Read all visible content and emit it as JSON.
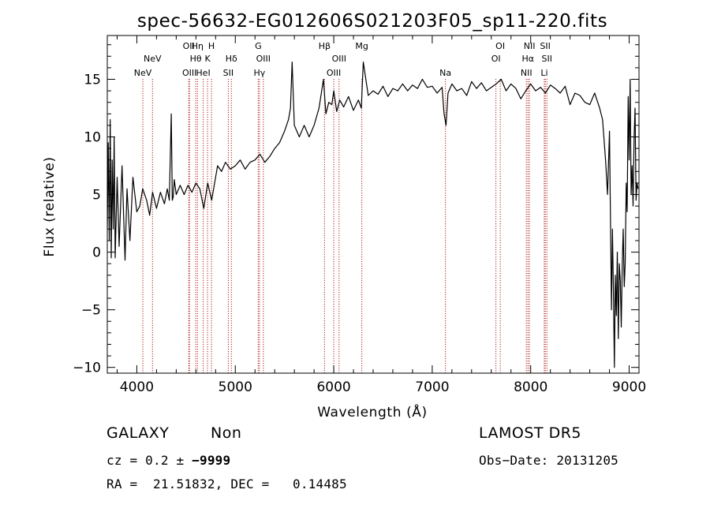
{
  "chart_data": {
    "type": "line",
    "title": "spec-56632-EG012606S021203F05_sp11-220.fits",
    "xlabel": "Wavelength (Å)",
    "ylabel": "Flux (relative)",
    "xlim": [
      3700,
      9100
    ],
    "ylim": [
      -10.5,
      18.8
    ],
    "xticks": [
      {
        "value": 4000,
        "label": "4000"
      },
      {
        "value": 5000,
        "label": "5000"
      },
      {
        "value": 6000,
        "label": "6000"
      },
      {
        "value": 7000,
        "label": "7000"
      },
      {
        "value": 8000,
        "label": "8000"
      },
      {
        "value": 9000,
        "label": "9000"
      }
    ],
    "yticks": [
      {
        "value": -10,
        "label": "−10"
      },
      {
        "value": -5,
        "label": "−5"
      },
      {
        "value": 0,
        "label": "0"
      },
      {
        "value": 5,
        "label": "5"
      },
      {
        "value": 10,
        "label": "10"
      },
      {
        "value": 15,
        "label": "15"
      }
    ],
    "spectrum": {
      "line_color": "#000000",
      "x": [
        3700,
        3710,
        3720,
        3730,
        3740,
        3750,
        3760,
        3770,
        3780,
        3800,
        3820,
        3850,
        3880,
        3900,
        3930,
        3960,
        4000,
        4030,
        4060,
        4100,
        4130,
        4160,
        4200,
        4240,
        4280,
        4310,
        4330,
        4350,
        4360,
        4370,
        4380,
        4400,
        4440,
        4480,
        4520,
        4560,
        4600,
        4640,
        4680,
        4720,
        4760,
        4780,
        4800,
        4820,
        4860,
        4900,
        4950,
        5000,
        5050,
        5100,
        5150,
        5200,
        5250,
        5300,
        5350,
        5400,
        5450,
        5500,
        5540,
        5560,
        5577,
        5600,
        5650,
        5700,
        5750,
        5800,
        5850,
        5895,
        5920,
        5950,
        5980,
        6000,
        6030,
        6060,
        6100,
        6150,
        6200,
        6250,
        6280,
        6300,
        6350,
        6400,
        6450,
        6500,
        6550,
        6600,
        6650,
        6700,
        6750,
        6800,
        6850,
        6900,
        6950,
        7000,
        7050,
        7100,
        7120,
        7140,
        7160,
        7200,
        7250,
        7300,
        7350,
        7400,
        7450,
        7500,
        7550,
        7600,
        7650,
        7700,
        7750,
        7800,
        7850,
        7900,
        7950,
        8000,
        8050,
        8100,
        8150,
        8200,
        8250,
        8300,
        8350,
        8400,
        8450,
        8500,
        8550,
        8600,
        8650,
        8700,
        8730,
        8760,
        8780,
        8800,
        8820,
        8830,
        8840,
        8850,
        8860,
        8870,
        8880,
        8890,
        8900,
        8910,
        8920,
        8930,
        8940,
        8950,
        8960,
        8970,
        8980,
        8990,
        9000,
        9010,
        9020,
        9030,
        9040,
        9050,
        9060,
        9070,
        9080,
        9090
      ],
      "y": [
        2.0,
        9.5,
        1.0,
        11.5,
        -0.5,
        8.0,
        2.0,
        10.0,
        -0.5,
        6.5,
        0.5,
        7.5,
        -0.7,
        5.5,
        1.0,
        6.5,
        3.5,
        4.0,
        5.5,
        4.5,
        3.2,
        5.2,
        3.8,
        5.2,
        4.2,
        5.5,
        4.5,
        12.0,
        4.5,
        4.8,
        6.3,
        5.0,
        5.8,
        5.0,
        5.8,
        5.2,
        6.0,
        5.5,
        3.8,
        6.0,
        4.5,
        5.5,
        6.5,
        7.5,
        7.0,
        7.8,
        7.2,
        7.5,
        8.0,
        7.2,
        7.8,
        8.0,
        8.5,
        7.8,
        8.3,
        9.0,
        9.5,
        10.5,
        11.5,
        12.5,
        16.5,
        11.0,
        10.0,
        11.0,
        10.0,
        11.0,
        12.5,
        15.0,
        12.0,
        13.0,
        12.8,
        14.0,
        12.2,
        13.2,
        12.6,
        13.5,
        12.3,
        13.2,
        12.5,
        16.5,
        13.6,
        14.0,
        13.7,
        14.4,
        13.5,
        14.2,
        14.0,
        14.6,
        14.0,
        14.5,
        14.2,
        15.0,
        14.3,
        14.4,
        13.8,
        14.3,
        12.0,
        11.0,
        13.8,
        14.6,
        14.0,
        14.2,
        13.6,
        14.8,
        14.2,
        14.7,
        14.0,
        14.3,
        14.6,
        15.0,
        14.0,
        14.6,
        14.2,
        13.3,
        14.0,
        14.6,
        14.0,
        14.3,
        13.8,
        14.5,
        14.2,
        13.8,
        14.4,
        12.8,
        13.8,
        13.6,
        13.0,
        12.8,
        13.8,
        12.5,
        11.5,
        8.0,
        5.0,
        10.5,
        -5.0,
        2.0,
        -3.0,
        -10.0,
        -2.0,
        -5.5,
        0.0,
        -7.5,
        -1.0,
        -2.5,
        -6.5,
        -1.0,
        2.0,
        -3.0,
        -1.0,
        6.0,
        3.5,
        13.5,
        8.0,
        15.0,
        5.0,
        7.5,
        4.0,
        10.0,
        12.5,
        4.5,
        6.0,
        5.5
      ]
    },
    "annotation_lines_color": "#b22222",
    "lines": [
      {
        "label": "NeV",
        "wave": 4061,
        "row": 3
      },
      {
        "label": "NeV",
        "wave": 4159,
        "row": 2
      },
      {
        "label": "OII",
        "wave": 4527,
        "row": 1
      },
      {
        "label": "OIII",
        "wave": 4535,
        "row": 3
      },
      {
        "label": "Hη",
        "wave": 4616,
        "row": 1
      },
      {
        "label": "Hθ",
        "wave": 4598,
        "row": 2
      },
      {
        "label": "HeI",
        "wave": 4674,
        "row": 3
      },
      {
        "label": "H",
        "wave": 4758,
        "row": 1
      },
      {
        "label": "K",
        "wave": 4718,
        "row": 2
      },
      {
        "label": "Hδ",
        "wave": 4960,
        "row": 2
      },
      {
        "label": "SII",
        "wave": 4929,
        "row": 3
      },
      {
        "label": "G",
        "wave": 5233,
        "row": 1
      },
      {
        "label": "OIII",
        "wave": 5285,
        "row": 2
      },
      {
        "label": "Hγ",
        "wave": 5245,
        "row": 3
      },
      {
        "label": "Hβ",
        "wave": 5906,
        "row": 1
      },
      {
        "label": "OIII",
        "wave": 6054,
        "row": 2
      },
      {
        "label": "OIII",
        "wave": 6000,
        "row": 3
      },
      {
        "label": "Mg",
        "wave": 6285,
        "row": 1
      },
      {
        "label": "Na",
        "wave": 7134,
        "row": 3
      },
      {
        "label": "OI",
        "wave": 7691,
        "row": 1
      },
      {
        "label": "OI",
        "wave": 7647,
        "row": 2
      },
      {
        "label": "NII",
        "wave": 7987,
        "row": 1
      },
      {
        "label": "Hα",
        "wave": 7972,
        "row": 2
      },
      {
        "label": "NII",
        "wave": 7956,
        "row": 3
      },
      {
        "label": "SII",
        "wave": 8148,
        "row": 1
      },
      {
        "label": "SII",
        "wave": 8165,
        "row": 2
      },
      {
        "label": "Li",
        "wave": 8138,
        "row": 3
      }
    ]
  },
  "info": {
    "class": "GALAXY",
    "subclass": "Non",
    "survey": "LAMOST DR5",
    "cz_label": "cz = 0.2 ± ",
    "cz_err": "−9999",
    "obs_date": "Obs−Date: 20131205",
    "radec": "RA =  21.51832, DEC =   0.14485"
  }
}
